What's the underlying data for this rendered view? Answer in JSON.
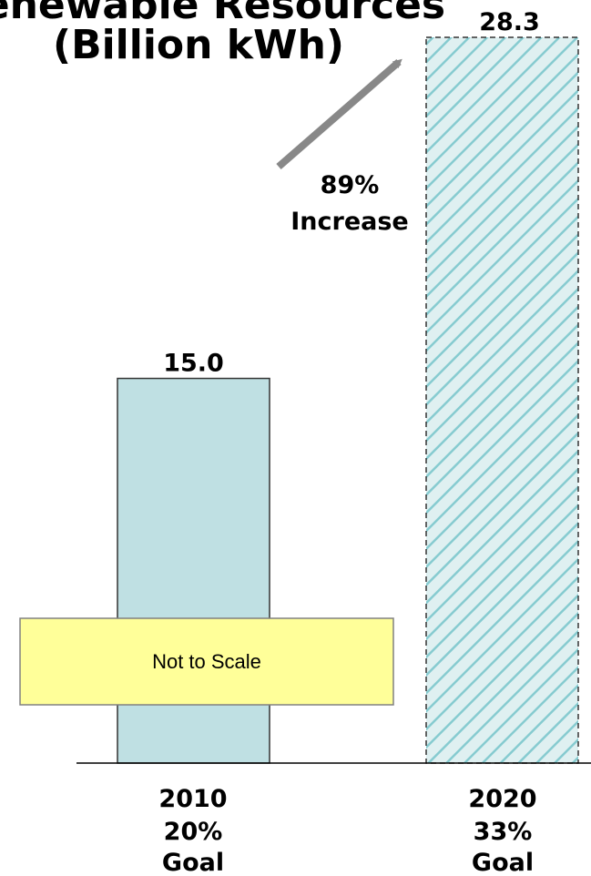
{
  "chart_data": {
    "type": "bar",
    "title": "Renewable Resources",
    "subtitle": "(Billion kWh)",
    "categories": [
      [
        "2010",
        "20%",
        "Goal"
      ],
      [
        "2020",
        "33%",
        "Goal"
      ]
    ],
    "values": [
      15.0,
      28.3
    ],
    "value_labels": [
      "15.0",
      "28.3"
    ],
    "annotation": [
      "89%",
      "Increase"
    ],
    "note": "Not to Scale",
    "grid": false,
    "legend": "none"
  },
  "colors": {
    "bar_fill": "#bfe0e3",
    "bar_stroke": "#333333",
    "hatch_light": "#bfe0e3",
    "hatch_line": "#7ec7cc",
    "arrow": "#888888",
    "note_fill": "#ffff99",
    "note_stroke": "#808080"
  }
}
